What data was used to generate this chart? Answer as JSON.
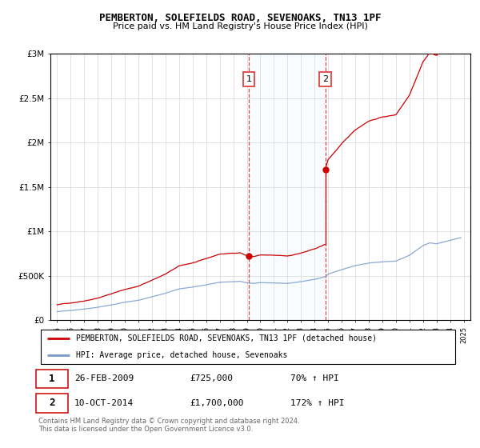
{
  "title1": "PEMBERTON, SOLEFIELDS ROAD, SEVENOAKS, TN13 1PF",
  "title2": "Price paid vs. HM Land Registry's House Price Index (HPI)",
  "ylabel_ticks": [
    "£0",
    "£500K",
    "£1M",
    "£1.5M",
    "£2M",
    "£2.5M",
    "£3M"
  ],
  "ylabel_values": [
    0,
    500000,
    1000000,
    1500000,
    2000000,
    2500000,
    3000000
  ],
  "ylim": [
    0,
    3000000
  ],
  "xlim": [
    1994.5,
    2025.5
  ],
  "event1_x": 2009.15,
  "event2_x": 2014.8,
  "event1_price": 725000,
  "event2_price": 1700000,
  "legend_line1": "PEMBERTON, SOLEFIELDS ROAD, SEVENOAKS, TN13 1PF (detached house)",
  "legend_line2": "HPI: Average price, detached house, Sevenoaks",
  "line1_color": "#cc0000",
  "line2_color": "#7799cc",
  "footer": "Contains HM Land Registry data © Crown copyright and database right 2024.\nThis data is licensed under the Open Government Licence v3.0.",
  "shaded_color": "#ddeeff",
  "dashed_color": "#dd4444",
  "background_color": "#ffffff",
  "ann1_date": "26-FEB-2009",
  "ann1_price": "£725,000",
  "ann1_hpi": "70% ↑ HPI",
  "ann2_date": "10-OCT-2014",
  "ann2_price": "£1,700,000",
  "ann2_hpi": "172% ↑ HPI"
}
